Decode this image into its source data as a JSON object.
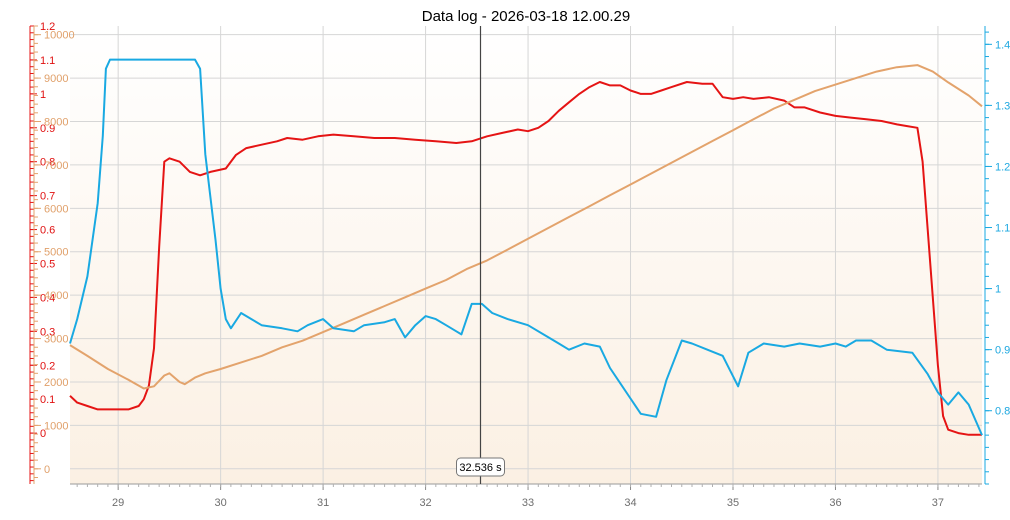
{
  "title": "Data log - 2026-03-18 12.00.29",
  "cursor": {
    "x": 32.536,
    "label": "32.536 s"
  },
  "colors": {
    "red": "#e51414",
    "orange": "#e3a36c",
    "blue": "#19a9e2",
    "grid": "#d6d6d6",
    "cursor": "#444444",
    "plot_bg_top": "#ffffff",
    "plot_bg_bottom": "#fbf0e3"
  },
  "chart_data": {
    "type": "line",
    "title": "Data log - 2026-03-18 12.00.29",
    "xlim": [
      28.53,
      37.43
    ],
    "x_ticks": [
      29,
      30,
      31,
      32,
      33,
      34,
      35,
      36,
      37
    ],
    "grid": true,
    "axes": {
      "red": {
        "side": "left",
        "ylim": [
          -0.15,
          1.2
        ],
        "ticks": [
          0,
          0.1,
          0.2,
          0.3,
          0.4,
          0.5,
          0.6,
          0.7,
          0.8,
          0.9,
          1,
          1.1,
          1.2
        ]
      },
      "orange": {
        "side": "left",
        "ylim": [
          -350,
          10200
        ],
        "ticks": [
          0,
          1000,
          2000,
          3000,
          4000,
          5000,
          6000,
          7000,
          8000,
          9000,
          10000
        ]
      },
      "blue": {
        "side": "right",
        "ylim": [
          0.68,
          1.43
        ],
        "ticks": [
          0.8,
          0.9,
          1,
          1.1,
          1.2,
          1.3,
          1.4
        ]
      }
    },
    "series": [
      {
        "axis": "red",
        "color": "#e51414",
        "points": [
          [
            28.53,
            0.11
          ],
          [
            28.6,
            0.09
          ],
          [
            28.7,
            0.08
          ],
          [
            28.8,
            0.07
          ],
          [
            29.0,
            0.07
          ],
          [
            29.1,
            0.07
          ],
          [
            29.2,
            0.08
          ],
          [
            29.25,
            0.1
          ],
          [
            29.3,
            0.14
          ],
          [
            29.35,
            0.25
          ],
          [
            29.4,
            0.55
          ],
          [
            29.45,
            0.8
          ],
          [
            29.5,
            0.81
          ],
          [
            29.6,
            0.8
          ],
          [
            29.7,
            0.77
          ],
          [
            29.8,
            0.76
          ],
          [
            29.9,
            0.77
          ],
          [
            30.05,
            0.78
          ],
          [
            30.15,
            0.82
          ],
          [
            30.25,
            0.84
          ],
          [
            30.4,
            0.85
          ],
          [
            30.55,
            0.86
          ],
          [
            30.65,
            0.87
          ],
          [
            30.8,
            0.865
          ],
          [
            30.95,
            0.875
          ],
          [
            31.1,
            0.88
          ],
          [
            31.3,
            0.875
          ],
          [
            31.5,
            0.87
          ],
          [
            31.7,
            0.87
          ],
          [
            31.9,
            0.865
          ],
          [
            32.1,
            0.86
          ],
          [
            32.3,
            0.855
          ],
          [
            32.45,
            0.86
          ],
          [
            32.6,
            0.875
          ],
          [
            32.75,
            0.885
          ],
          [
            32.9,
            0.895
          ],
          [
            33.0,
            0.89
          ],
          [
            33.1,
            0.9
          ],
          [
            33.2,
            0.92
          ],
          [
            33.3,
            0.95
          ],
          [
            33.4,
            0.975
          ],
          [
            33.5,
            1.0
          ],
          [
            33.6,
            1.02
          ],
          [
            33.7,
            1.035
          ],
          [
            33.8,
            1.025
          ],
          [
            33.9,
            1.025
          ],
          [
            34.0,
            1.01
          ],
          [
            34.1,
            1.0
          ],
          [
            34.2,
            1.0
          ],
          [
            34.3,
            1.01
          ],
          [
            34.4,
            1.02
          ],
          [
            34.55,
            1.035
          ],
          [
            34.7,
            1.03
          ],
          [
            34.8,
            1.03
          ],
          [
            34.9,
            0.99
          ],
          [
            35.0,
            0.985
          ],
          [
            35.1,
            0.99
          ],
          [
            35.2,
            0.985
          ],
          [
            35.35,
            0.99
          ],
          [
            35.5,
            0.98
          ],
          [
            35.6,
            0.96
          ],
          [
            35.7,
            0.96
          ],
          [
            35.85,
            0.945
          ],
          [
            36.0,
            0.935
          ],
          [
            36.15,
            0.93
          ],
          [
            36.3,
            0.925
          ],
          [
            36.45,
            0.92
          ],
          [
            36.6,
            0.91
          ],
          [
            36.7,
            0.905
          ],
          [
            36.8,
            0.9
          ],
          [
            36.85,
            0.8
          ],
          [
            36.9,
            0.6
          ],
          [
            36.95,
            0.4
          ],
          [
            37.0,
            0.2
          ],
          [
            37.05,
            0.05
          ],
          [
            37.1,
            0.01
          ],
          [
            37.2,
            0.0
          ],
          [
            37.3,
            -0.005
          ],
          [
            37.43,
            -0.005
          ]
        ]
      },
      {
        "axis": "orange",
        "color": "#e3a36c",
        "points": [
          [
            28.53,
            2850
          ],
          [
            28.7,
            2600
          ],
          [
            28.9,
            2300
          ],
          [
            29.1,
            2050
          ],
          [
            29.25,
            1850
          ],
          [
            29.35,
            1900
          ],
          [
            29.45,
            2150
          ],
          [
            29.5,
            2200
          ],
          [
            29.6,
            2000
          ],
          [
            29.65,
            1950
          ],
          [
            29.75,
            2100
          ],
          [
            29.85,
            2200
          ],
          [
            30.0,
            2300
          ],
          [
            30.2,
            2450
          ],
          [
            30.4,
            2600
          ],
          [
            30.6,
            2800
          ],
          [
            30.8,
            2950
          ],
          [
            31.0,
            3150
          ],
          [
            31.2,
            3350
          ],
          [
            31.4,
            3550
          ],
          [
            31.6,
            3750
          ],
          [
            31.8,
            3950
          ],
          [
            32.0,
            4150
          ],
          [
            32.2,
            4350
          ],
          [
            32.4,
            4600
          ],
          [
            32.6,
            4800
          ],
          [
            32.8,
            5050
          ],
          [
            33.0,
            5300
          ],
          [
            33.2,
            5550
          ],
          [
            33.4,
            5800
          ],
          [
            33.6,
            6050
          ],
          [
            33.8,
            6300
          ],
          [
            34.0,
            6550
          ],
          [
            34.2,
            6800
          ],
          [
            34.4,
            7050
          ],
          [
            34.6,
            7300
          ],
          [
            34.8,
            7550
          ],
          [
            35.0,
            7800
          ],
          [
            35.2,
            8050
          ],
          [
            35.4,
            8300
          ],
          [
            35.6,
            8500
          ],
          [
            35.8,
            8700
          ],
          [
            36.0,
            8850
          ],
          [
            36.2,
            9000
          ],
          [
            36.4,
            9150
          ],
          [
            36.6,
            9250
          ],
          [
            36.8,
            9300
          ],
          [
            36.95,
            9150
          ],
          [
            37.1,
            8900
          ],
          [
            37.3,
            8600
          ],
          [
            37.43,
            8350
          ]
        ]
      },
      {
        "axis": "blue",
        "color": "#19a9e2",
        "points": [
          [
            28.53,
            0.91
          ],
          [
            28.6,
            0.95
          ],
          [
            28.7,
            1.02
          ],
          [
            28.8,
            1.14
          ],
          [
            28.85,
            1.25
          ],
          [
            28.88,
            1.36
          ],
          [
            28.92,
            1.375
          ],
          [
            29.0,
            1.375
          ],
          [
            29.5,
            1.375
          ],
          [
            29.75,
            1.375
          ],
          [
            29.8,
            1.36
          ],
          [
            29.85,
            1.22
          ],
          [
            29.9,
            1.15
          ],
          [
            29.95,
            1.08
          ],
          [
            30.0,
            1.0
          ],
          [
            30.05,
            0.95
          ],
          [
            30.1,
            0.935
          ],
          [
            30.2,
            0.96
          ],
          [
            30.3,
            0.95
          ],
          [
            30.4,
            0.94
          ],
          [
            30.6,
            0.935
          ],
          [
            30.75,
            0.93
          ],
          [
            30.85,
            0.94
          ],
          [
            31.0,
            0.95
          ],
          [
            31.1,
            0.935
          ],
          [
            31.3,
            0.93
          ],
          [
            31.4,
            0.94
          ],
          [
            31.6,
            0.945
          ],
          [
            31.7,
            0.95
          ],
          [
            31.8,
            0.92
          ],
          [
            31.9,
            0.94
          ],
          [
            32.0,
            0.955
          ],
          [
            32.1,
            0.95
          ],
          [
            32.2,
            0.94
          ],
          [
            32.3,
            0.93
          ],
          [
            32.35,
            0.925
          ],
          [
            32.45,
            0.975
          ],
          [
            32.55,
            0.975
          ],
          [
            32.65,
            0.96
          ],
          [
            32.8,
            0.95
          ],
          [
            33.0,
            0.94
          ],
          [
            33.2,
            0.92
          ],
          [
            33.3,
            0.91
          ],
          [
            33.4,
            0.9
          ],
          [
            33.55,
            0.91
          ],
          [
            33.7,
            0.905
          ],
          [
            33.8,
            0.87
          ],
          [
            34.0,
            0.82
          ],
          [
            34.1,
            0.795
          ],
          [
            34.25,
            0.79
          ],
          [
            34.35,
            0.85
          ],
          [
            34.5,
            0.915
          ],
          [
            34.6,
            0.91
          ],
          [
            34.75,
            0.9
          ],
          [
            34.9,
            0.89
          ],
          [
            35.05,
            0.84
          ],
          [
            35.15,
            0.895
          ],
          [
            35.3,
            0.91
          ],
          [
            35.5,
            0.905
          ],
          [
            35.65,
            0.91
          ],
          [
            35.85,
            0.905
          ],
          [
            36.0,
            0.91
          ],
          [
            36.1,
            0.905
          ],
          [
            36.2,
            0.915
          ],
          [
            36.35,
            0.915
          ],
          [
            36.5,
            0.9
          ],
          [
            36.75,
            0.895
          ],
          [
            36.9,
            0.86
          ],
          [
            37.0,
            0.83
          ],
          [
            37.1,
            0.81
          ],
          [
            37.2,
            0.83
          ],
          [
            37.3,
            0.81
          ],
          [
            37.43,
            0.76
          ]
        ]
      }
    ]
  }
}
